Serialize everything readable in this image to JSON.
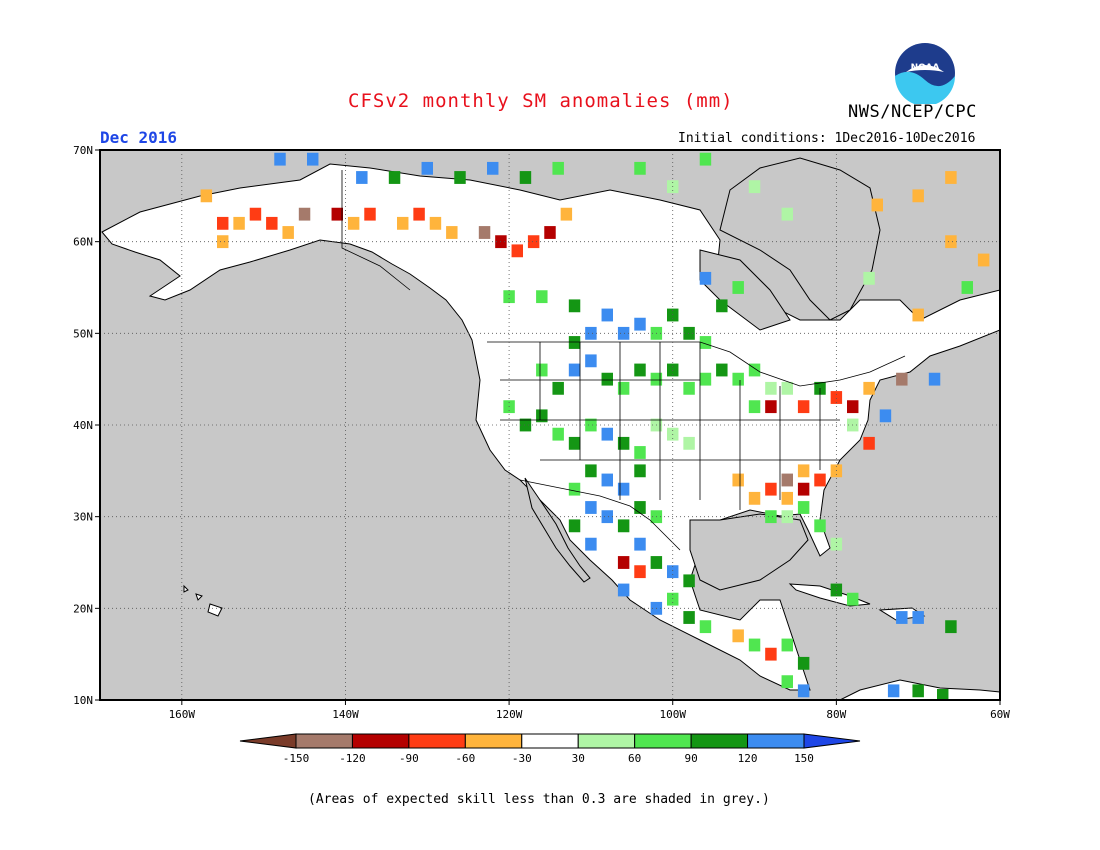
{
  "header": {
    "title": "CFSv2 monthly SM anomalies (mm)",
    "agency": "NWS/NCEP/CPC",
    "logo_text": "NOAA",
    "month": "Dec 2016",
    "initial_conditions": "Initial conditions: 1Dec2016-10Dec2016"
  },
  "map": {
    "projection": "lat-lon",
    "lon_range": [
      -170,
      -60
    ],
    "lat_range": [
      10,
      70
    ],
    "lat_ticks": [
      {
        "value": 70,
        "label": "70N"
      },
      {
        "value": 60,
        "label": "60N"
      },
      {
        "value": 50,
        "label": "50N"
      },
      {
        "value": 40,
        "label": "40N"
      },
      {
        "value": 30,
        "label": "30N"
      },
      {
        "value": 20,
        "label": "20N"
      },
      {
        "value": 10,
        "label": "10N"
      }
    ],
    "lon_ticks": [
      {
        "value": -160,
        "label": "160W"
      },
      {
        "value": -140,
        "label": "140W"
      },
      {
        "value": -120,
        "label": "120W"
      },
      {
        "value": -100,
        "label": "100W"
      },
      {
        "value": -80,
        "label": "80W"
      },
      {
        "value": -60,
        "label": "60W"
      }
    ],
    "grid_lons": [
      -160,
      -140,
      -120,
      -100,
      -80
    ],
    "grid_lats": [
      20,
      30,
      40,
      50,
      60
    ],
    "colors": {
      "ocean": "#c8c8c8",
      "land": "#ffffff",
      "border": "#000000"
    },
    "anomaly_cells": [
      {
        "lon": -155,
        "lat": 62,
        "v": -80
      },
      {
        "lon": -153,
        "lat": 62,
        "v": -60
      },
      {
        "lon": -151,
        "lat": 63,
        "v": -90
      },
      {
        "lon": -149,
        "lat": 62,
        "v": -80
      },
      {
        "lon": -147,
        "lat": 61,
        "v": -60
      },
      {
        "lon": -145,
        "lat": 63,
        "v": -130
      },
      {
        "lon": -141,
        "lat": 63,
        "v": -100
      },
      {
        "lon": -139,
        "lat": 62,
        "v": -50
      },
      {
        "lon": -137,
        "lat": 63,
        "v": -80
      },
      {
        "lon": -133,
        "lat": 62,
        "v": -60
      },
      {
        "lon": -131,
        "lat": 63,
        "v": -90
      },
      {
        "lon": -129,
        "lat": 62,
        "v": -50
      },
      {
        "lon": -127,
        "lat": 61,
        "v": -60
      },
      {
        "lon": -123,
        "lat": 61,
        "v": -130
      },
      {
        "lon": -121,
        "lat": 60,
        "v": -100
      },
      {
        "lon": -119,
        "lat": 59,
        "v": -80
      },
      {
        "lon": -117,
        "lat": 60,
        "v": -90
      },
      {
        "lon": -115,
        "lat": 61,
        "v": -110
      },
      {
        "lon": -113,
        "lat": 63,
        "v": -50
      },
      {
        "lon": -157,
        "lat": 65,
        "v": -60
      },
      {
        "lon": -155,
        "lat": 60,
        "v": -40
      },
      {
        "lon": -138,
        "lat": 67,
        "v": 130
      },
      {
        "lon": -134,
        "lat": 67,
        "v": 100
      },
      {
        "lon": -130,
        "lat": 68,
        "v": 140
      },
      {
        "lon": -126,
        "lat": 67,
        "v": 110
      },
      {
        "lon": -122,
        "lat": 68,
        "v": 130
      },
      {
        "lon": -118,
        "lat": 67,
        "v": 100
      },
      {
        "lon": -114,
        "lat": 68,
        "v": 70
      },
      {
        "lon": -148,
        "lat": 69,
        "v": 140
      },
      {
        "lon": -144,
        "lat": 69,
        "v": 130
      },
      {
        "lon": -120,
        "lat": 54,
        "v": 70
      },
      {
        "lon": -116,
        "lat": 54,
        "v": 80
      },
      {
        "lon": -112,
        "lat": 53,
        "v": 100
      },
      {
        "lon": -108,
        "lat": 52,
        "v": 130
      },
      {
        "lon": -106,
        "lat": 50,
        "v": 140
      },
      {
        "lon": -104,
        "lat": 51,
        "v": 130
      },
      {
        "lon": -110,
        "lat": 50,
        "v": 140
      },
      {
        "lon": -112,
        "lat": 49,
        "v": 110
      },
      {
        "lon": -102,
        "lat": 50,
        "v": 80
      },
      {
        "lon": -100,
        "lat": 52,
        "v": 100
      },
      {
        "lon": -98,
        "lat": 50,
        "v": 90
      },
      {
        "lon": -96,
        "lat": 49,
        "v": 70
      },
      {
        "lon": -94,
        "lat": 53,
        "v": 100
      },
      {
        "lon": -92,
        "lat": 55,
        "v": 80
      },
      {
        "lon": -96,
        "lat": 56,
        "v": 140
      },
      {
        "lon": -116,
        "lat": 46,
        "v": 80
      },
      {
        "lon": -114,
        "lat": 44,
        "v": 100
      },
      {
        "lon": -112,
        "lat": 46,
        "v": 130
      },
      {
        "lon": -110,
        "lat": 47,
        "v": 120
      },
      {
        "lon": -108,
        "lat": 45,
        "v": 90
      },
      {
        "lon": -106,
        "lat": 44,
        "v": 70
      },
      {
        "lon": -104,
        "lat": 46,
        "v": 110
      },
      {
        "lon": -102,
        "lat": 45,
        "v": 80
      },
      {
        "lon": -100,
        "lat": 46,
        "v": 100
      },
      {
        "lon": -98,
        "lat": 44,
        "v": 60
      },
      {
        "lon": -96,
        "lat": 45,
        "v": 80
      },
      {
        "lon": -94,
        "lat": 46,
        "v": 90
      },
      {
        "lon": -92,
        "lat": 45,
        "v": 70
      },
      {
        "lon": -90,
        "lat": 46,
        "v": 60
      },
      {
        "lon": -88,
        "lat": 44,
        "v": 50
      },
      {
        "lon": -120,
        "lat": 42,
        "v": 80
      },
      {
        "lon": -118,
        "lat": 40,
        "v": 90
      },
      {
        "lon": -116,
        "lat": 41,
        "v": 110
      },
      {
        "lon": -114,
        "lat": 39,
        "v": 80
      },
      {
        "lon": -112,
        "lat": 38,
        "v": 100
      },
      {
        "lon": -110,
        "lat": 40,
        "v": 70
      },
      {
        "lon": -108,
        "lat": 39,
        "v": 130
      },
      {
        "lon": -106,
        "lat": 38,
        "v": 90
      },
      {
        "lon": -104,
        "lat": 37,
        "v": 60
      },
      {
        "lon": -102,
        "lat": 40,
        "v": 50
      },
      {
        "lon": -100,
        "lat": 39,
        "v": 40
      },
      {
        "lon": -98,
        "lat": 38,
        "v": 50
      },
      {
        "lon": -110,
        "lat": 35,
        "v": 110
      },
      {
        "lon": -108,
        "lat": 34,
        "v": 140
      },
      {
        "lon": -106,
        "lat": 33,
        "v": 120
      },
      {
        "lon": -104,
        "lat": 35,
        "v": 100
      },
      {
        "lon": -112,
        "lat": 33,
        "v": 80
      },
      {
        "lon": -110,
        "lat": 31,
        "v": 140
      },
      {
        "lon": -108,
        "lat": 30,
        "v": 130
      },
      {
        "lon": -106,
        "lat": 29,
        "v": 90
      },
      {
        "lon": -104,
        "lat": 31,
        "v": 110
      },
      {
        "lon": -102,
        "lat": 30,
        "v": 70
      },
      {
        "lon": -104,
        "lat": 27,
        "v": 130
      },
      {
        "lon": -106,
        "lat": 25,
        "v": -110
      },
      {
        "lon": -104,
        "lat": 24,
        "v": -80
      },
      {
        "lon": -102,
        "lat": 25,
        "v": 90
      },
      {
        "lon": -100,
        "lat": 24,
        "v": 140
      },
      {
        "lon": -98,
        "lat": 23,
        "v": 100
      },
      {
        "lon": -100,
        "lat": 21,
        "v": 80
      },
      {
        "lon": -102,
        "lat": 20,
        "v": 130
      },
      {
        "lon": -98,
        "lat": 19,
        "v": 110
      },
      {
        "lon": -96,
        "lat": 18,
        "v": 70
      },
      {
        "lon": -106,
        "lat": 22,
        "v": 120
      },
      {
        "lon": -110,
        "lat": 27,
        "v": 140
      },
      {
        "lon": -112,
        "lat": 29,
        "v": 100
      },
      {
        "lon": -86,
        "lat": 34,
        "v": -130
      },
      {
        "lon": -84,
        "lat": 33,
        "v": -120
      },
      {
        "lon": -88,
        "lat": 33,
        "v": -70
      },
      {
        "lon": -82,
        "lat": 34,
        "v": -90
      },
      {
        "lon": -86,
        "lat": 32,
        "v": -60
      },
      {
        "lon": -90,
        "lat": 32,
        "v": -50
      },
      {
        "lon": -84,
        "lat": 35,
        "v": -60
      },
      {
        "lon": -80,
        "lat": 35,
        "v": -50
      },
      {
        "lon": -92,
        "lat": 34,
        "v": -40
      },
      {
        "lon": -84,
        "lat": 31,
        "v": 60
      },
      {
        "lon": -82,
        "lat": 29,
        "v": 80
      },
      {
        "lon": -80,
        "lat": 27,
        "v": 50
      },
      {
        "lon": -86,
        "lat": 30,
        "v": 40
      },
      {
        "lon": -88,
        "lat": 30,
        "v": 60
      },
      {
        "lon": -90,
        "lat": 42,
        "v": 60
      },
      {
        "lon": -88,
        "lat": 42,
        "v": -100
      },
      {
        "lon": -84,
        "lat": 42,
        "v": -90
      },
      {
        "lon": -80,
        "lat": 43,
        "v": -80
      },
      {
        "lon": -78,
        "lat": 42,
        "v": -100
      },
      {
        "lon": -76,
        "lat": 44,
        "v": -60
      },
      {
        "lon": -82,
        "lat": 44,
        "v": 110
      },
      {
        "lon": -86,
        "lat": 44,
        "v": 50
      },
      {
        "lon": -76,
        "lat": 38,
        "v": -70
      },
      {
        "lon": -78,
        "lat": 40,
        "v": 50
      },
      {
        "lon": -72,
        "lat": 45,
        "v": -130
      },
      {
        "lon": -68,
        "lat": 45,
        "v": 120
      },
      {
        "lon": -74,
        "lat": 41,
        "v": 130
      },
      {
        "lon": -86,
        "lat": 16,
        "v": 80
      },
      {
        "lon": -84,
        "lat": 14,
        "v": 110
      },
      {
        "lon": -88,
        "lat": 15,
        "v": -90
      },
      {
        "lon": -86,
        "lat": 12,
        "v": 70
      },
      {
        "lon": -84,
        "lat": 11,
        "v": 130
      },
      {
        "lon": -90,
        "lat": 16,
        "v": 60
      },
      {
        "lon": -92,
        "lat": 17,
        "v": -60
      },
      {
        "lon": -80,
        "lat": 22,
        "v": 110
      },
      {
        "lon": -78,
        "lat": 21,
        "v": 80
      },
      {
        "lon": -72,
        "lat": 19,
        "v": 130
      },
      {
        "lon": -70,
        "lat": 19,
        "v": 140
      },
      {
        "lon": -66,
        "lat": 18,
        "v": 100
      },
      {
        "lon": -73,
        "lat": 11,
        "v": 130
      },
      {
        "lon": -70,
        "lat": 11,
        "v": 100
      },
      {
        "lon": -67,
        "lat": 10.5,
        "v": 110
      },
      {
        "lon": -75,
        "lat": 64,
        "v": -60
      },
      {
        "lon": -70,
        "lat": 65,
        "v": -50
      },
      {
        "lon": -66,
        "lat": 60,
        "v": -60
      },
      {
        "lon": -62,
        "lat": 58,
        "v": -50
      },
      {
        "lon": -64,
        "lat": 55,
        "v": 60
      },
      {
        "lon": -70,
        "lat": 52,
        "v": -60
      },
      {
        "lon": -76,
        "lat": 56,
        "v": 40
      },
      {
        "lon": -86,
        "lat": 63,
        "v": 50
      },
      {
        "lon": -90,
        "lat": 66,
        "v": 40
      },
      {
        "lon": -100,
        "lat": 66,
        "v": 50
      },
      {
        "lon": -104,
        "lat": 68,
        "v": 70
      },
      {
        "lon": -96,
        "lat": 69,
        "v": 60
      },
      {
        "lon": -66,
        "lat": 67,
        "v": -50
      }
    ]
  },
  "legend": {
    "bins": [
      {
        "color": "#7a3b29"
      },
      {
        "color": "#a57a6b"
      },
      {
        "color": "#b40000"
      },
      {
        "color": "#ff3c14"
      },
      {
        "color": "#ffb43c"
      },
      {
        "color": "#ffffff"
      },
      {
        "color": "#aff5a5"
      },
      {
        "color": "#50e650"
      },
      {
        "color": "#149614"
      },
      {
        "color": "#3c8cf0"
      },
      {
        "color": "#1e46e6"
      }
    ],
    "labels": [
      "-150",
      "-120",
      "-90",
      "-60",
      "-30",
      "30",
      "60",
      "90",
      "120",
      "150"
    ]
  },
  "footnote": "(Areas of expected skill less than 0.3 are shaded in grey.)"
}
